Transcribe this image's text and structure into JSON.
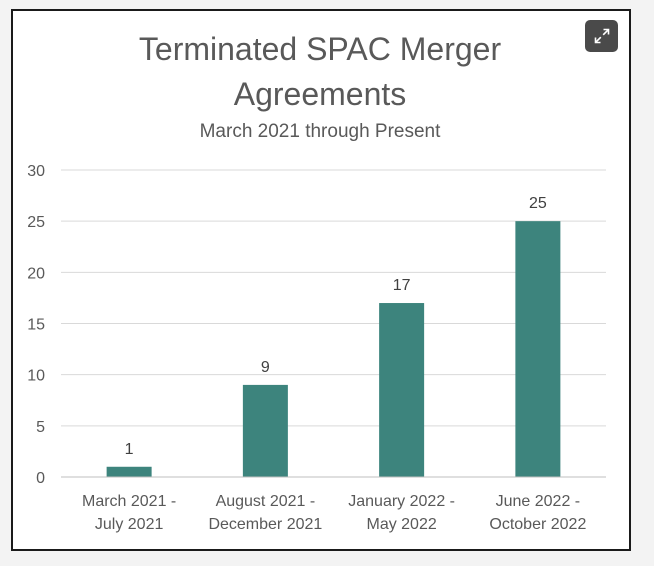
{
  "chart_data": {
    "type": "bar",
    "title": [
      "Terminated SPAC Merger",
      "Agreements"
    ],
    "subtitle": "March 2021 through Present",
    "categories": [
      [
        "March 2021 -",
        "July 2021"
      ],
      [
        "August 2021 -",
        "December 2021"
      ],
      [
        "January 2022 -",
        "May 2022"
      ],
      [
        "June 2022 -",
        "October 2022"
      ]
    ],
    "values": [
      1,
      9,
      17,
      25
    ],
    "data_labels": [
      "1",
      "9",
      "17",
      "25"
    ],
    "y_ticks": [
      "0",
      "5",
      "10",
      "15",
      "20",
      "25",
      "30"
    ],
    "ylim": [
      0,
      30
    ],
    "grid": true,
    "legend": "none",
    "bar_color": "#3d847d"
  },
  "toolbar": {
    "expand_icon": "expand-icon"
  }
}
